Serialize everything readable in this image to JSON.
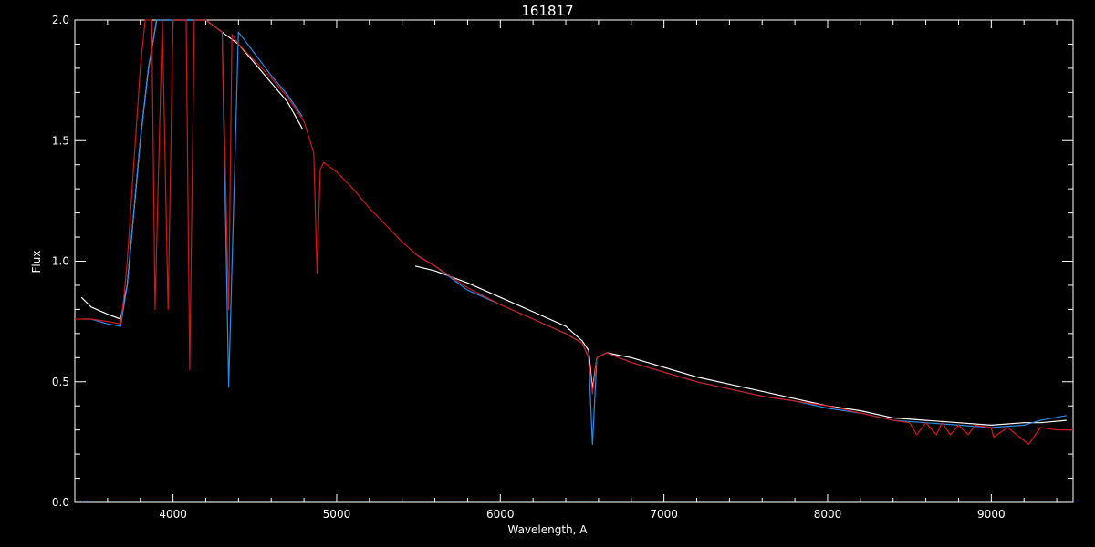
{
  "chart_data": {
    "type": "line",
    "title": "161817",
    "xlabel": "Wavelength, A",
    "ylabel": "Flux",
    "xlim": [
      3400,
      9500
    ],
    "ylim": [
      0,
      2.0
    ],
    "xticks": [
      4000,
      5000,
      6000,
      7000,
      8000,
      9000
    ],
    "yticks": [
      "0.0",
      "0.5",
      "1.0",
      "1.5",
      "2.0"
    ],
    "grid": false,
    "colors": {
      "background": "#000000",
      "axes": "#ffffff",
      "model": "#cc1a1a",
      "observed_blue": "#2a8ce8",
      "observed_white": "#ffffff"
    },
    "series": [
      {
        "role": "model",
        "color": "#cc1a1a",
        "x": [
          3400,
          3500,
          3600,
          3680,
          3700,
          3720,
          3740,
          3760,
          3780,
          3800,
          3830,
          3870,
          3890,
          3935,
          3970,
          4000,
          4080,
          4102,
          4130,
          4200,
          4300,
          4340,
          4360,
          4400,
          4500,
          4600,
          4700,
          4800,
          4860,
          4880,
          4900,
          4920,
          5000,
          5100,
          5200,
          5300,
          5400,
          5500,
          5600,
          5800,
          6000,
          6200,
          6400,
          6500,
          6540,
          6563,
          6590,
          6650,
          6800,
          7000,
          7200,
          7400,
          7600,
          7800,
          8000,
          8200,
          8400,
          8500,
          8545,
          8600,
          8665,
          8700,
          8750,
          8800,
          8860,
          8900,
          9000,
          9015,
          9100,
          9229,
          9300,
          9400,
          9500
        ],
        "y": [
          0.76,
          0.76,
          0.75,
          0.74,
          0.85,
          1.0,
          1.2,
          1.4,
          1.6,
          1.8,
          2.0,
          2.0,
          0.8,
          2.0,
          0.8,
          2.0,
          2.0,
          0.55,
          2.0,
          2.0,
          1.95,
          0.8,
          1.94,
          1.9,
          1.83,
          1.76,
          1.68,
          1.58,
          1.45,
          0.95,
          1.38,
          1.41,
          1.37,
          1.3,
          1.22,
          1.15,
          1.08,
          1.02,
          0.98,
          0.89,
          0.82,
          0.76,
          0.7,
          0.66,
          0.6,
          0.45,
          0.6,
          0.62,
          0.58,
          0.54,
          0.5,
          0.47,
          0.44,
          0.42,
          0.4,
          0.37,
          0.34,
          0.33,
          0.28,
          0.33,
          0.28,
          0.33,
          0.28,
          0.32,
          0.28,
          0.32,
          0.31,
          0.27,
          0.31,
          0.24,
          0.31,
          0.3,
          0.3
        ]
      },
      {
        "role": "observed",
        "color": "#ffffff",
        "x": [
          3440,
          3500,
          3600,
          3680,
          3720,
          3760,
          3800,
          3850,
          3900,
          3950,
          4000,
          4100,
          4200,
          4300,
          4400,
          4500,
          4600,
          4700,
          4790,
          5480,
          5600,
          5800,
          6000,
          6200,
          6400,
          6500,
          6540,
          6563,
          6590,
          6650,
          6800,
          7000,
          7200,
          7400,
          7600,
          7800,
          8000,
          8200,
          8400,
          8600,
          8800,
          9000,
          9200,
          9300,
          9460
        ],
        "y": [
          0.85,
          0.81,
          0.78,
          0.76,
          0.9,
          1.2,
          1.5,
          1.8,
          2.0,
          2.0,
          2.0,
          2.0,
          2.0,
          1.95,
          1.9,
          1.82,
          1.74,
          1.66,
          1.55,
          0.98,
          0.96,
          0.91,
          0.85,
          0.79,
          0.73,
          0.67,
          0.63,
          0.47,
          0.6,
          0.62,
          0.6,
          0.56,
          0.52,
          0.49,
          0.46,
          0.43,
          0.4,
          0.38,
          0.35,
          0.34,
          0.33,
          0.32,
          0.33,
          0.33,
          0.34
        ]
      },
      {
        "role": "observed",
        "color": "#2a8ce8",
        "x": [
          3440,
          3500,
          3600,
          3680,
          3720,
          3760,
          3800,
          3850,
          3900,
          3950,
          4000,
          4100,
          4200,
          4300,
          4340,
          4400,
          4500,
          4600,
          4700,
          4790,
          5480,
          5600,
          5800,
          6000,
          6200,
          6400,
          6500,
          6540,
          6563,
          6590,
          6650,
          6800,
          7000,
          7200,
          7400,
          7600,
          7800,
          8000,
          8200,
          8400,
          8600,
          8800,
          9000,
          9200,
          9300,
          9460
        ],
        "y": [
          0.76,
          0.76,
          0.74,
          0.73,
          0.9,
          1.2,
          1.5,
          1.8,
          2.0,
          2.0,
          2.0,
          2.0,
          2.0,
          1.95,
          0.48,
          1.95,
          1.86,
          1.77,
          1.69,
          1.6,
          1.03,
          0.98,
          0.88,
          0.82,
          0.76,
          0.7,
          0.66,
          0.6,
          0.24,
          0.6,
          0.62,
          0.58,
          0.54,
          0.5,
          0.47,
          0.44,
          0.42,
          0.39,
          0.37,
          0.34,
          0.33,
          0.32,
          0.31,
          0.32,
          0.34,
          0.36
        ]
      }
    ]
  }
}
